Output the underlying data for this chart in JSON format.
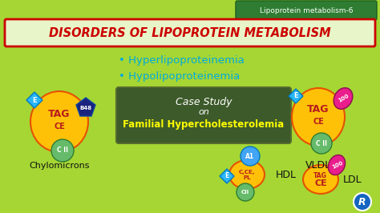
{
  "bg_color": "#a5d633",
  "title": "DISORDERS OF LIPOPROTEIN METABOLISM",
  "title_color": "#cc0000",
  "title_border_color": "#cc0000",
  "title_bg": "#e8f5c8",
  "subtitle_label": "Lipoprotein metabolism-6",
  "subtitle_bg": "#2e7d32",
  "subtitle_text_color": "#ffffff",
  "bullet1": "Hyperlipoproteinemia",
  "bullet2": "Hypolipoproteinemia",
  "bullet_color": "#00aadd",
  "case_study_bg": "#3d5a2a",
  "case_study_line1": "Case Study",
  "case_study_line1_color": "#ffffff",
  "case_study_line2": "on",
  "case_study_line2_color": "#ffffff",
  "case_study_line3": "Familial Hypercholesterolemia",
  "case_study_line3_color": "#ffff00",
  "chylomicron_label": "Chylomicrons",
  "vldl_label": "VLDL",
  "hdl_label": "HDL",
  "ldl_label": "LDL",
  "tag_color": "#ffc107",
  "cii_color": "#66bb6a",
  "e_color": "#29b6f6",
  "b48_color": "#1a237e",
  "magenta_color": "#e91e8c",
  "logo_color": "#1565c0",
  "label_color": "#111111"
}
